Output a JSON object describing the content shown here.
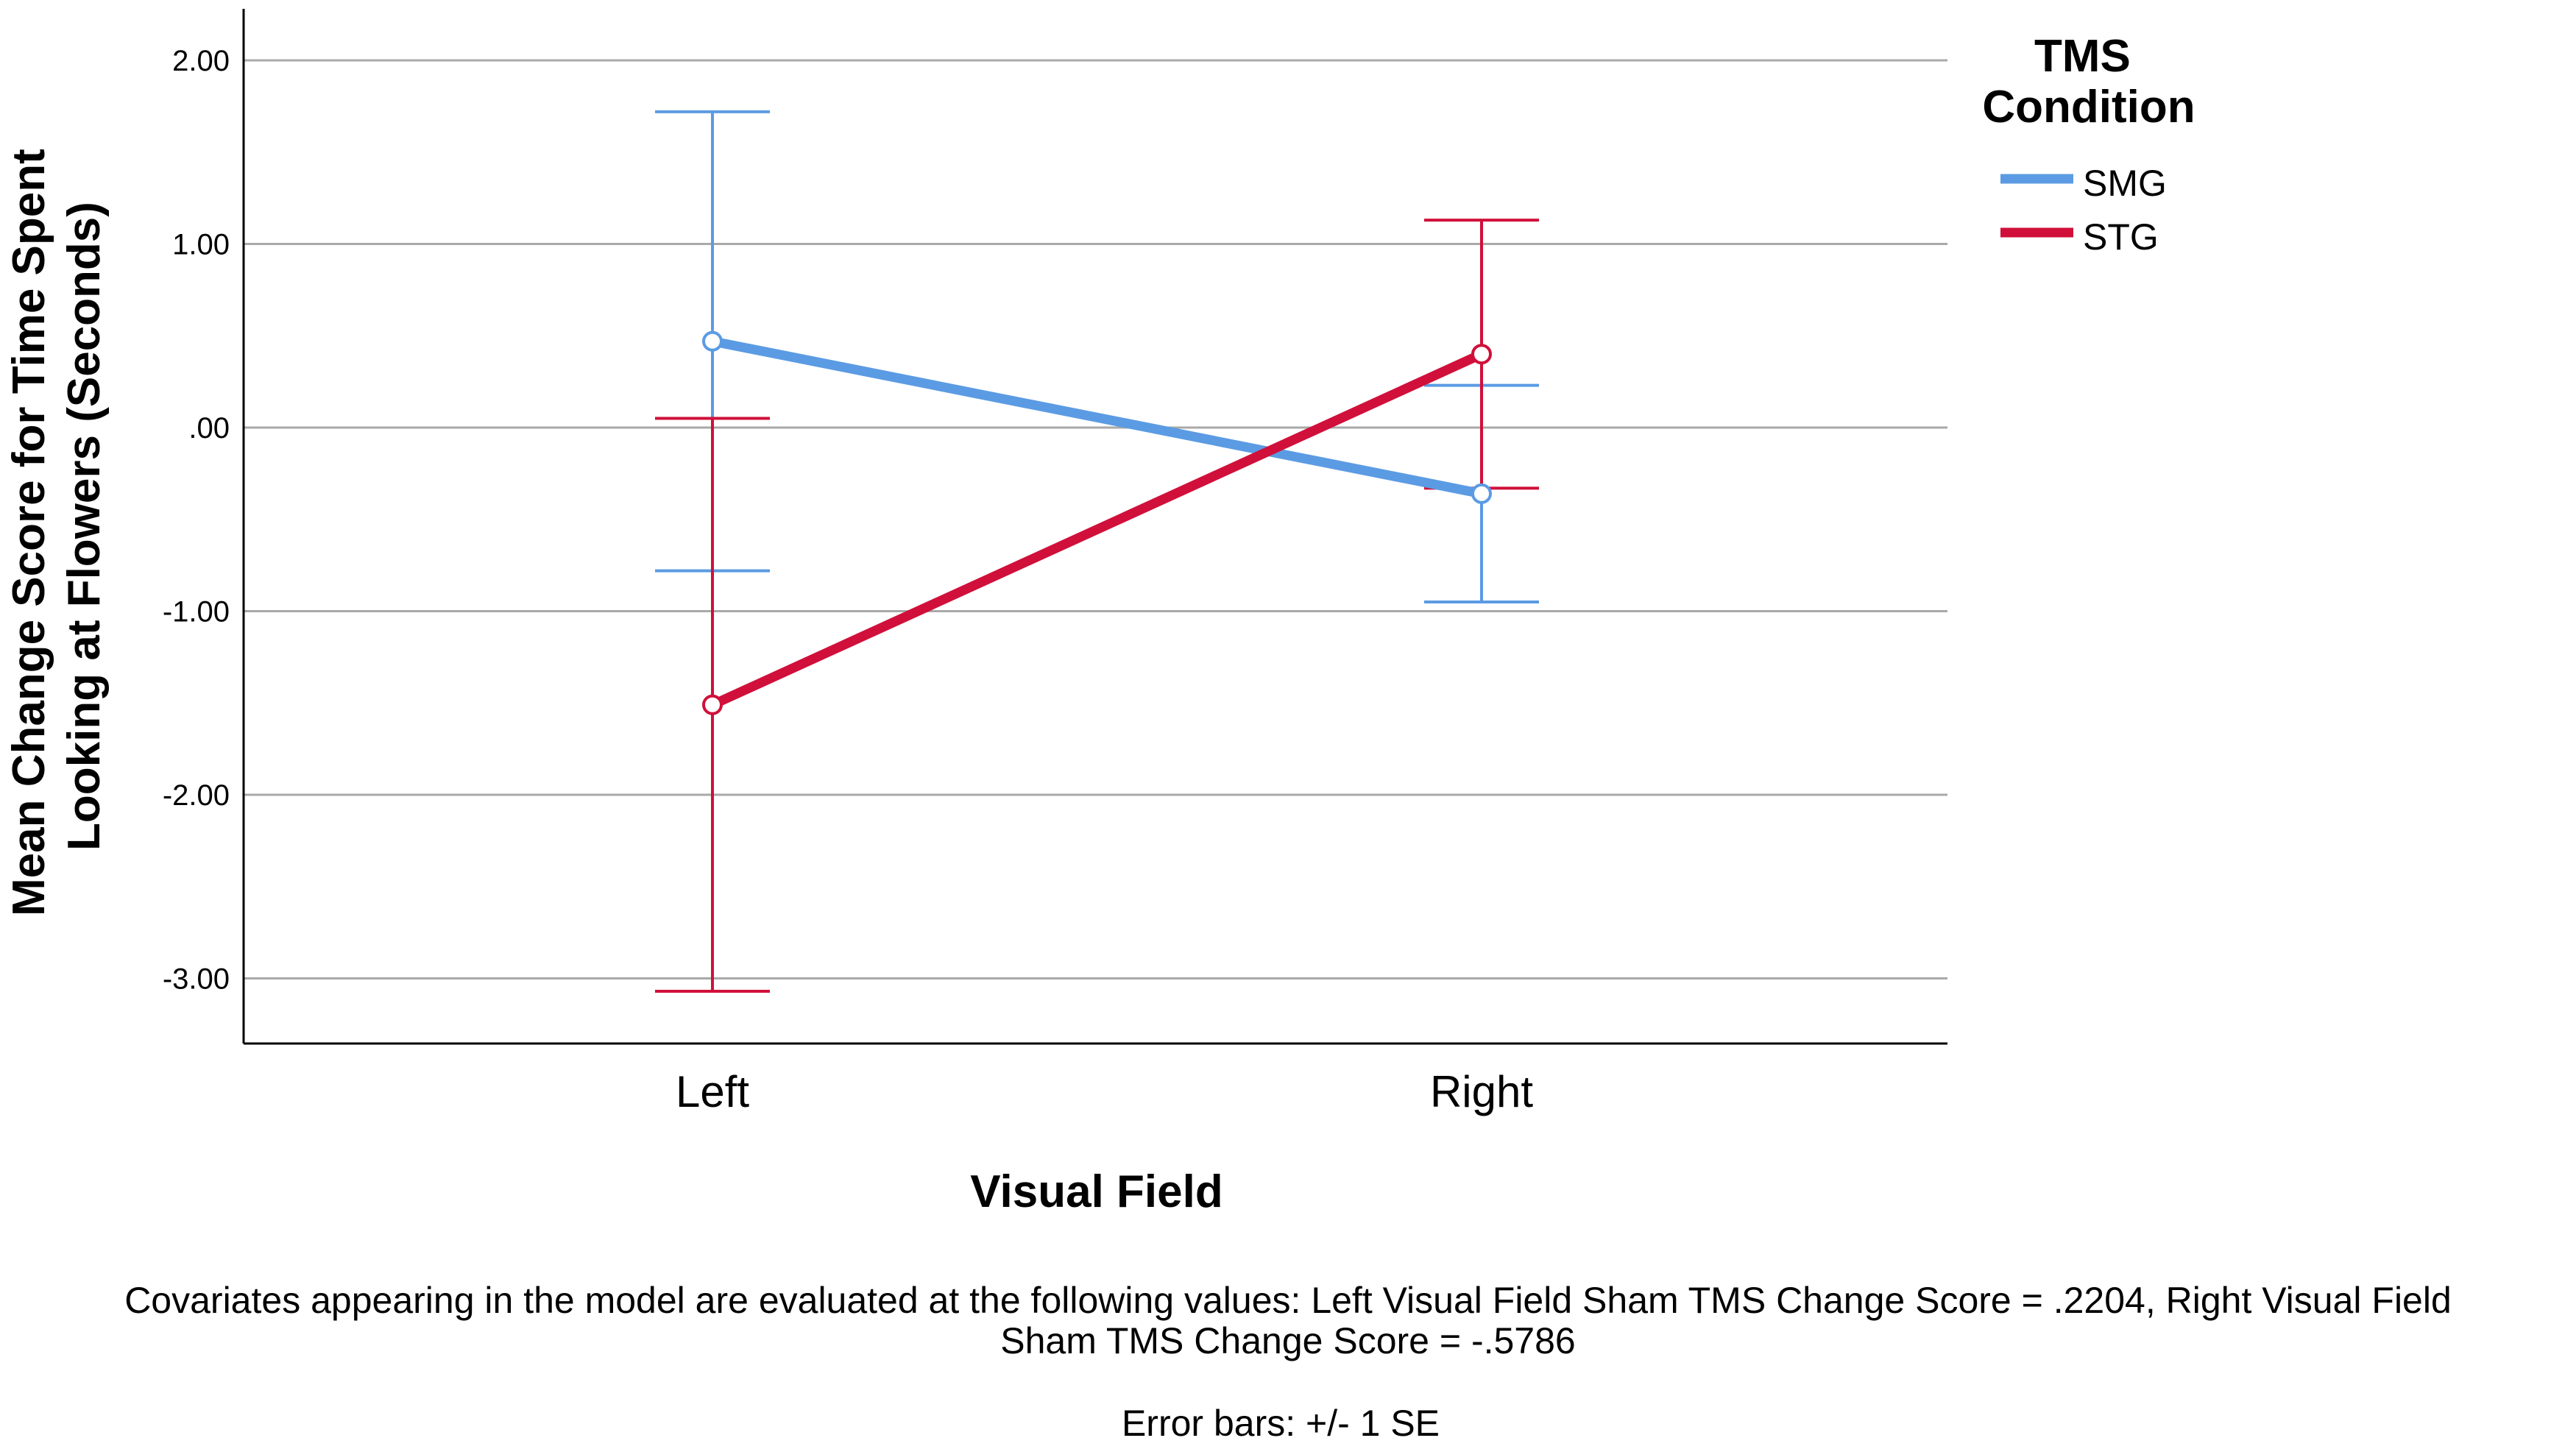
{
  "chart_data": {
    "type": "line",
    "xlabel": "Visual Field",
    "ylabel": [
      "Mean Change Score for Time Spent",
      "Looking at Flowers (Seconds)"
    ],
    "categories": [
      "Left",
      "Right"
    ],
    "ylim": [
      -3.35,
      2.05
    ],
    "yticks": [
      2.0,
      1.0,
      0.0,
      -1.0,
      -2.0,
      -3.0
    ],
    "ytick_labels": [
      "2.00",
      "1.00",
      ".00",
      "-1.00",
      "-2.00",
      "-3.00"
    ],
    "grid": true,
    "legend": {
      "title": [
        "TMS",
        "Condition"
      ],
      "position": "top-right"
    },
    "series": [
      {
        "name": "SMG",
        "color": "#5b9be3",
        "values": [
          0.47,
          -0.36
        ],
        "err_low": [
          -0.78,
          -0.95
        ],
        "err_high": [
          1.72,
          0.23
        ]
      },
      {
        "name": "STG",
        "color": "#d0103a",
        "values": [
          -1.51,
          0.4
        ],
        "err_low": [
          -3.07,
          -0.33
        ],
        "err_high": [
          0.05,
          1.13
        ]
      }
    ],
    "footnotes": [
      "Covariates appearing in the model are evaluated at the following values: Left Visual Field Sham TMS Change Score = .2204, Right Visual Field",
      "Sham TMS Change Score = -.5786",
      "Error bars: +/- 1 SE"
    ]
  }
}
